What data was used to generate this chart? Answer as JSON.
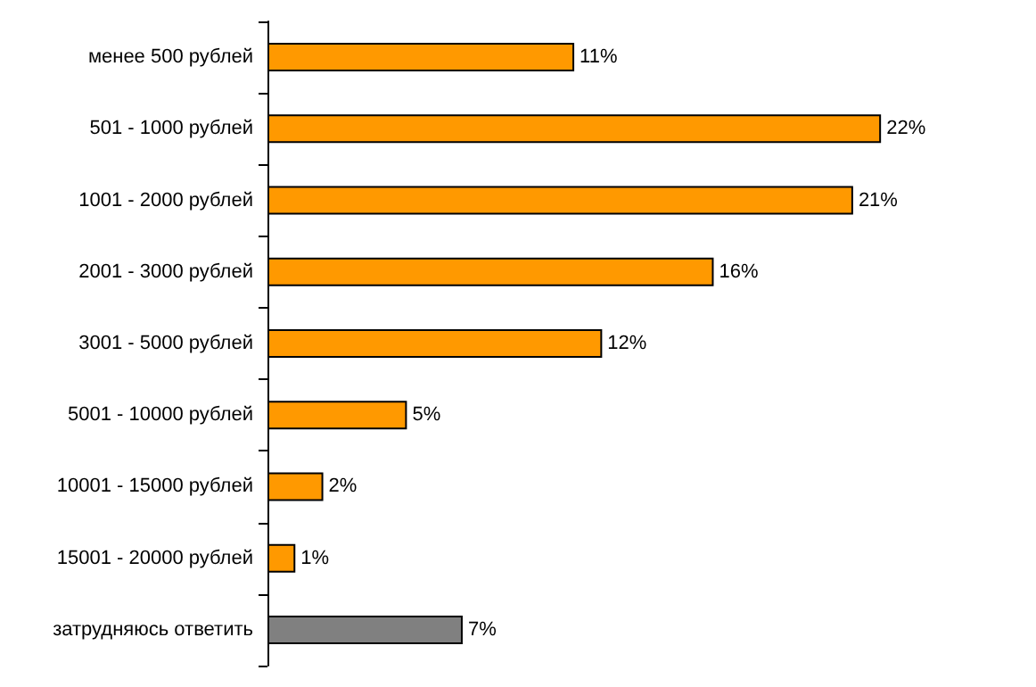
{
  "chart_data": {
    "type": "bar",
    "orientation": "horizontal",
    "categories": [
      "менее 500 рублей",
      "501 - 1000 рублей",
      "1001 - 2000 рублей",
      "2001 - 3000 рублей",
      "3001 - 5000 рублей",
      "5001 - 10000 рублей",
      "10001 - 15000 рублей",
      "15001 - 20000 рублей",
      "затрудняюсь ответить"
    ],
    "values": [
      11,
      22,
      21,
      16,
      12,
      5,
      2,
      1,
      7
    ],
    "colors": [
      "#ff9900",
      "#ff9900",
      "#ff9900",
      "#ff9900",
      "#ff9900",
      "#ff9900",
      "#ff9900",
      "#ff9900",
      "#808080"
    ],
    "value_labels": [
      "11%",
      "22%",
      "21%",
      "16%",
      "12%",
      "5%",
      "2%",
      "1%",
      "7%"
    ]
  }
}
